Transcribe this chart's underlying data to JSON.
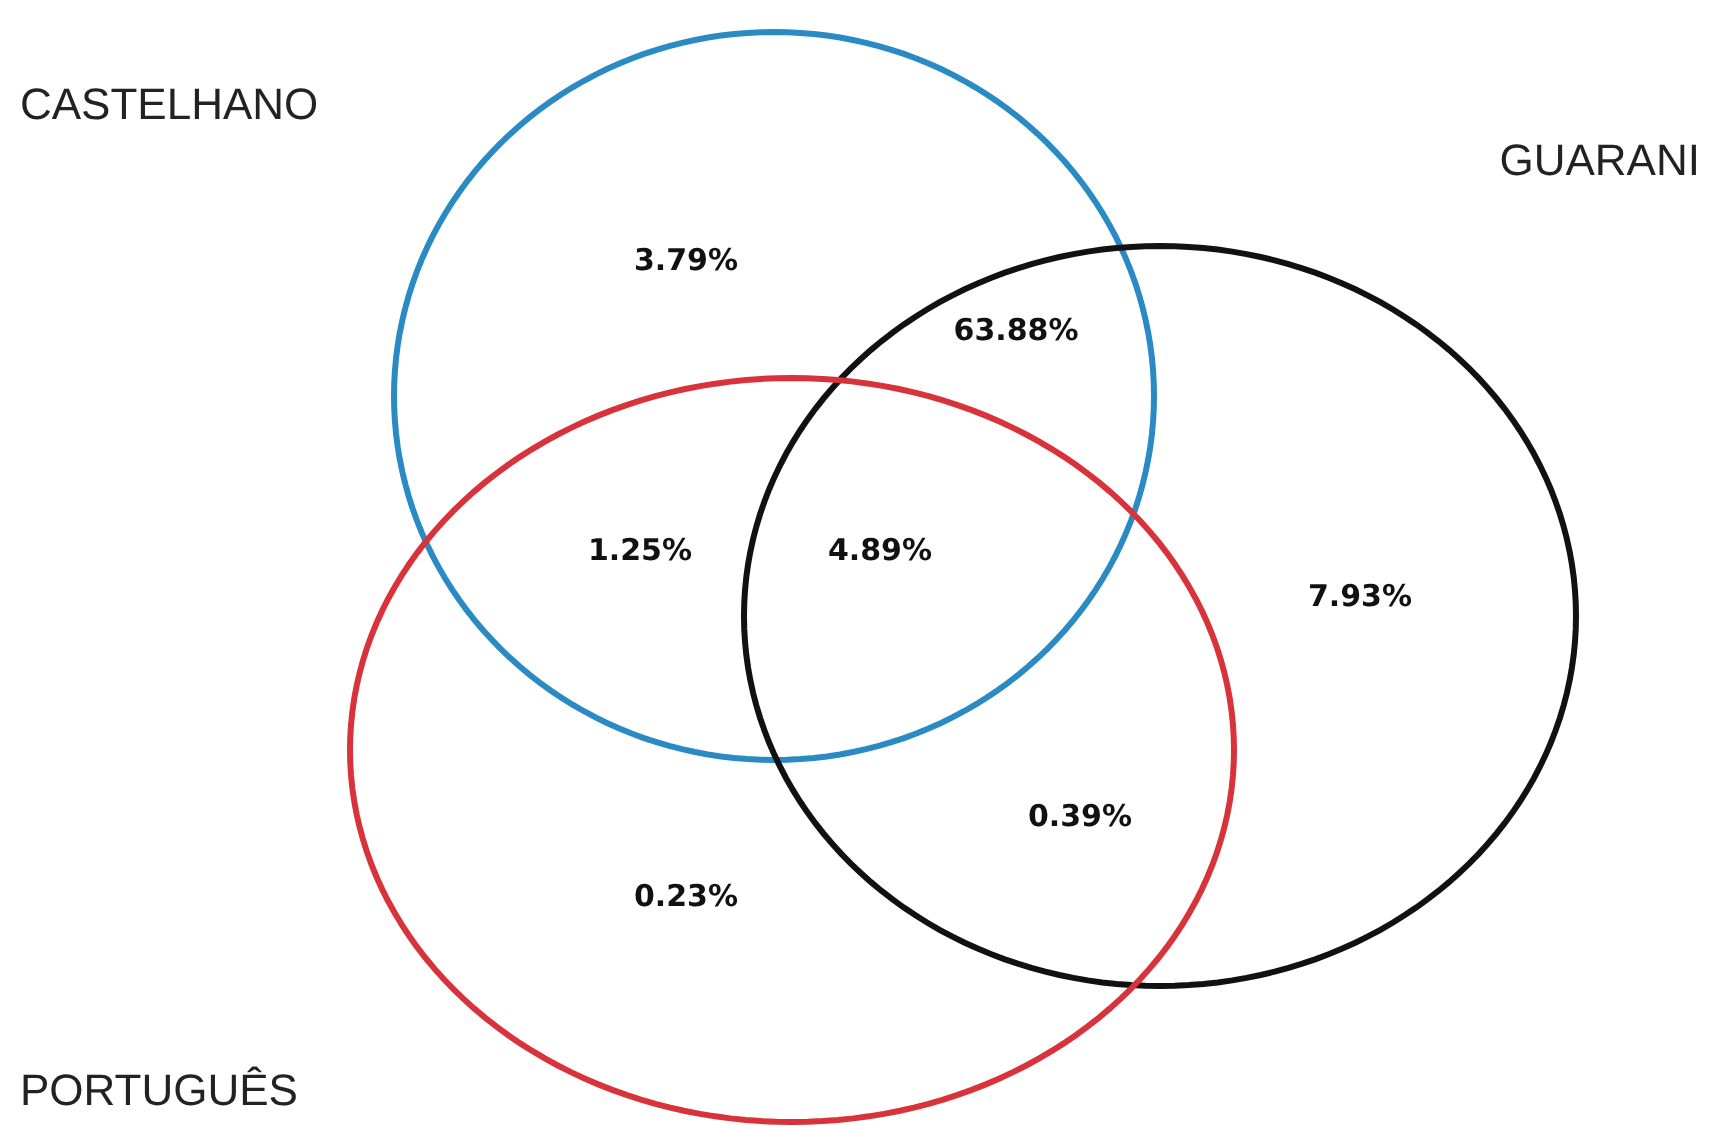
{
  "chart_data": {
    "type": "other",
    "categories": [
      null,
      null,
      null,
      null,
      null,
      null,
      null
    ],
    "values": [
      3.79,
      63.88,
      1.25,
      4.89,
      7.93,
      0.39,
      0.23
    ],
    "value_labels": [
      "3.79%",
      "63.88%",
      "1.25%",
      "4.89%",
      "7.93%",
      "0.39%",
      "0.23%"
    ],
    "annotations": [
      "CASTELHANO",
      "GUARANI",
      "PORTUGUÊS"
    ],
    "colors": [
      "#111111",
      "#111111",
      "#111111",
      "#111111",
      "#111111",
      "#111111",
      "#111111"
    ]
  }
}
